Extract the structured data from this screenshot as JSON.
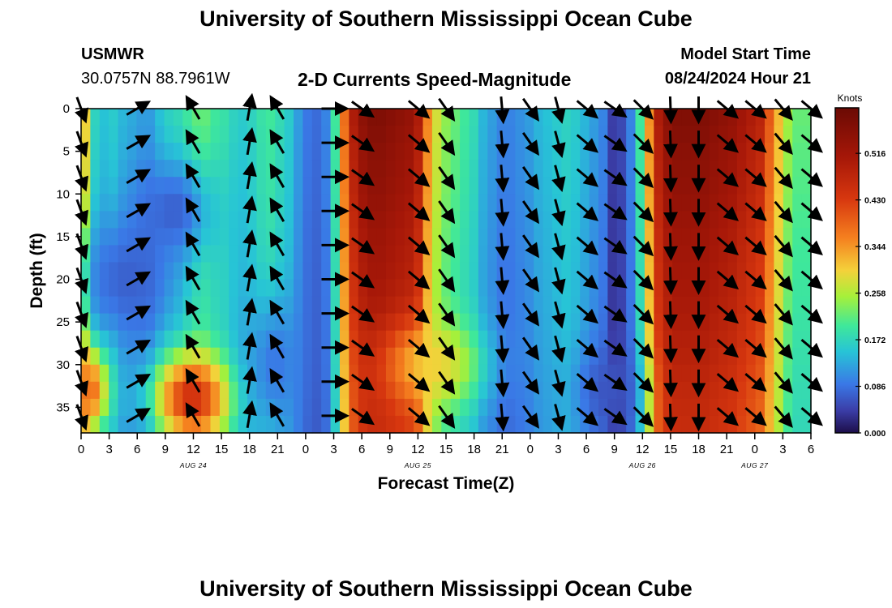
{
  "header": {
    "title": "University of Southern Mississippi Ocean Cube",
    "station_id": "USMWR",
    "station_coords": "30.0757N  88.7961W",
    "product": "2-D Currents Speed-Magnitude",
    "model_label": "Model Start Time",
    "model_time": "08/24/2024 Hour 21"
  },
  "footer": {
    "title": "University of Southern Mississippi Ocean Cube"
  },
  "colors": {
    "arrow": "#000000",
    "axis": "#000000",
    "background": "#ffffff"
  },
  "chart_data": {
    "type": "heatmap",
    "title": "2-D Currents Speed-Magnitude",
    "xlabel": "Forecast Time(Z)",
    "ylabel": "Depth (ft)",
    "colorbar_label": "Knots",
    "colorbar_ticks": [
      "0.000",
      "0.086",
      "0.172",
      "0.258",
      "0.344",
      "0.430",
      "0.516"
    ],
    "colorbar_range": [
      0,
      0.6
    ],
    "x_hours_range": [
      0,
      78
    ],
    "y_range": [
      0,
      38
    ],
    "y_ticks": [
      0,
      5,
      10,
      15,
      20,
      25,
      30,
      35
    ],
    "x_tick_labels": [
      "0",
      "3",
      "6",
      "9",
      "12",
      "15",
      "18",
      "21",
      "0",
      "3",
      "6",
      "9",
      "12",
      "15",
      "18",
      "21",
      "0",
      "3",
      "6",
      "9",
      "12",
      "15",
      "18",
      "21",
      "0",
      "3",
      "6"
    ],
    "date_labels": [
      {
        "label": "AUG 24",
        "hour": 12
      },
      {
        "label": "AUG 25",
        "hour": 36
      },
      {
        "label": "AUG 26",
        "hour": 60
      },
      {
        "label": "AUG 27",
        "hour": 72
      }
    ],
    "speed_by_hour": [
      0.3,
      0.17,
      0.15,
      0.16,
      0.14,
      0.13,
      0.12,
      0.12,
      0.15,
      0.17,
      0.18,
      0.2,
      0.22,
      0.22,
      0.2,
      0.19,
      0.17,
      0.16,
      0.17,
      0.19,
      0.2,
      0.18,
      0.16,
      0.12,
      0.09,
      0.08,
      0.1,
      0.2,
      0.38,
      0.5,
      0.55,
      0.57,
      0.57,
      0.56,
      0.55,
      0.54,
      0.5,
      0.36,
      0.28,
      0.24,
      0.22,
      0.2,
      0.18,
      0.14,
      0.12,
      0.1,
      0.1,
      0.11,
      0.12,
      0.14,
      0.15,
      0.16,
      0.17,
      0.16,
      0.14,
      0.12,
      0.1,
      0.04,
      0.05,
      0.1,
      0.2,
      0.35,
      0.5,
      0.55,
      0.57,
      0.57,
      0.57,
      0.57,
      0.56,
      0.55,
      0.54,
      0.52,
      0.5,
      0.48,
      0.4,
      0.32,
      0.25,
      0.22,
      0.22
    ],
    "depth_factor": [
      1.0,
      0.97,
      0.95,
      0.92,
      0.9,
      0.88,
      0.85,
      0.82,
      0.8
    ],
    "anomalies": [
      {
        "hour": 5,
        "depth": 20,
        "speed": 0.07,
        "radius_h": 5,
        "radius_d": 7
      },
      {
        "hour": 10,
        "depth": 12,
        "speed": 0.07,
        "radius_h": 4,
        "radius_d": 6
      },
      {
        "hour": 12,
        "depth": 34,
        "speed": 0.45,
        "radius_h": 4,
        "radius_d": 5
      },
      {
        "hour": 1,
        "depth": 33,
        "speed": 0.38,
        "radius_h": 2,
        "radius_d": 5
      },
      {
        "hour": 21,
        "depth": 30,
        "speed": 0.09,
        "radius_h": 3,
        "radius_d": 8
      },
      {
        "hour": 57,
        "depth": 33,
        "speed": 0.06,
        "radius_h": 3,
        "radius_d": 5
      },
      {
        "hour": 38,
        "depth": 30,
        "speed": 0.3,
        "radius_h": 5,
        "radius_d": 5
      }
    ],
    "vector_columns": [
      {
        "hour": 0,
        "angle": 70
      },
      {
        "hour": 6,
        "angle": -30
      },
      {
        "hour": 12,
        "angle": -120
      },
      {
        "hour": 18,
        "angle": -80
      },
      {
        "hour": 21,
        "angle": -120
      },
      {
        "hour": 27,
        "angle": 0
      },
      {
        "hour": 30,
        "angle": 35
      },
      {
        "hour": 36,
        "angle": 40
      },
      {
        "hour": 39,
        "angle": 55
      },
      {
        "hour": 45,
        "angle": 85
      },
      {
        "hour": 48,
        "angle": 55
      },
      {
        "hour": 51,
        "angle": 75
      },
      {
        "hour": 54,
        "angle": 40
      },
      {
        "hour": 57,
        "angle": 35
      },
      {
        "hour": 60,
        "angle": 45
      },
      {
        "hour": 63,
        "angle": 88
      },
      {
        "hour": 66,
        "angle": 90
      },
      {
        "hour": 69,
        "angle": 40
      },
      {
        "hour": 72,
        "angle": 40
      },
      {
        "hour": 75,
        "angle": 50
      },
      {
        "hour": 78,
        "angle": 40
      }
    ],
    "vector_depths": [
      0,
      4,
      8,
      12,
      16,
      20,
      24,
      28,
      32,
      36
    ]
  }
}
